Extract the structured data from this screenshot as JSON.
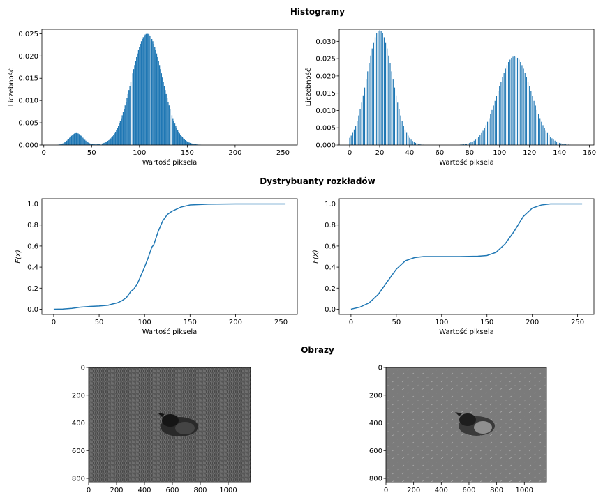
{
  "section_titles": {
    "histograms": "Histogramy",
    "cdfs": "Dystrybuanty rozkładów",
    "images": "Obrazy"
  },
  "colors": {
    "series": "#1f77b4",
    "axes": "#000000"
  },
  "chart_data": [
    {
      "id": "hist-left",
      "type": "bar",
      "xlabel": "Wartość piksela",
      "ylabel": "Liczebność",
      "xlim": [
        -2,
        265
      ],
      "ylim": [
        0,
        0.026
      ],
      "xticks": [
        0,
        50,
        100,
        150,
        200,
        250
      ],
      "yticks": [
        "0.000",
        "0.005",
        "0.010",
        "0.015",
        "0.020",
        "0.025"
      ],
      "ytick_values": [
        0,
        0.005,
        0.01,
        0.015,
        0.02,
        0.025
      ],
      "bins": {
        "start": 13,
        "end": 215,
        "components": [
          {
            "weight": 0.045,
            "mean": 34,
            "sd": 7
          },
          {
            "weight": 0.955,
            "mean": 108,
            "sd": 16
          }
        ],
        "peak": 0.025,
        "gaps": [
          60,
          92,
          112,
          133
        ]
      }
    },
    {
      "id": "hist-right",
      "type": "bar",
      "xlabel": "Wartość piksela",
      "ylabel": "Liczebność",
      "xlim": [
        -7,
        163
      ],
      "ylim": [
        0,
        0.0335
      ],
      "xticks": [
        0,
        20,
        40,
        60,
        80,
        100,
        120,
        140,
        160
      ],
      "yticks": [
        "0.000",
        "0.005",
        "0.010",
        "0.015",
        "0.020",
        "0.025",
        "0.030"
      ],
      "ytick_values": [
        0,
        0.005,
        0.01,
        0.015,
        0.02,
        0.025,
        0.03
      ],
      "bins": {
        "start": 0,
        "end": 150,
        "components": [
          {
            "weight": 0.5,
            "mean": 20,
            "sd": 8.5
          },
          {
            "weight": 0.5,
            "mean": 110,
            "sd": 11
          }
        ],
        "peak": 0.0332,
        "gaps": []
      }
    },
    {
      "id": "cdf-left",
      "type": "line",
      "xlabel": "Wartość piksela",
      "ylabel": "F(x)",
      "xlim": [
        -13,
        268
      ],
      "ylim": [
        -0.05,
        1.05
      ],
      "xticks": [
        0,
        50,
        100,
        150,
        200,
        250
      ],
      "yticks": [
        "0.0",
        "0.2",
        "0.4",
        "0.6",
        "0.8",
        "1.0"
      ],
      "ytick_values": [
        0,
        0.2,
        0.4,
        0.6,
        0.8,
        1.0
      ],
      "points": [
        [
          0,
          0
        ],
        [
          10,
          0.001
        ],
        [
          20,
          0.008
        ],
        [
          30,
          0.02
        ],
        [
          40,
          0.026
        ],
        [
          50,
          0.03
        ],
        [
          60,
          0.038
        ],
        [
          65,
          0.05
        ],
        [
          70,
          0.06
        ],
        [
          75,
          0.08
        ],
        [
          80,
          0.11
        ],
        [
          85,
          0.17
        ],
        [
          88,
          0.19
        ],
        [
          92,
          0.24
        ],
        [
          96,
          0.32
        ],
        [
          100,
          0.4
        ],
        [
          104,
          0.49
        ],
        [
          108,
          0.59
        ],
        [
          110,
          0.61
        ],
        [
          115,
          0.74
        ],
        [
          120,
          0.84
        ],
        [
          125,
          0.9
        ],
        [
          130,
          0.93
        ],
        [
          140,
          0.97
        ],
        [
          150,
          0.99
        ],
        [
          170,
          0.998
        ],
        [
          200,
          1.0
        ],
        [
          255,
          1.0
        ]
      ]
    },
    {
      "id": "cdf-right",
      "type": "line",
      "xlabel": "Wartość piksela",
      "ylabel": "F(x)",
      "xlim": [
        -13,
        268
      ],
      "ylim": [
        -0.05,
        1.05
      ],
      "xticks": [
        0,
        50,
        100,
        150,
        200,
        250
      ],
      "yticks": [
        "0.0",
        "0.2",
        "0.4",
        "0.6",
        "0.8",
        "1.0"
      ],
      "ytick_values": [
        0,
        0.2,
        0.4,
        0.6,
        0.8,
        1.0
      ],
      "points": [
        [
          0,
          0
        ],
        [
          10,
          0.02
        ],
        [
          20,
          0.06
        ],
        [
          30,
          0.14
        ],
        [
          40,
          0.26
        ],
        [
          50,
          0.38
        ],
        [
          60,
          0.46
        ],
        [
          70,
          0.49
        ],
        [
          80,
          0.5
        ],
        [
          100,
          0.5
        ],
        [
          120,
          0.5
        ],
        [
          140,
          0.503
        ],
        [
          150,
          0.51
        ],
        [
          160,
          0.54
        ],
        [
          170,
          0.62
        ],
        [
          180,
          0.74
        ],
        [
          190,
          0.88
        ],
        [
          200,
          0.96
        ],
        [
          210,
          0.99
        ],
        [
          220,
          1.0
        ],
        [
          255,
          1.0
        ]
      ]
    }
  ],
  "images": [
    {
      "id": "img-left",
      "xticks": [
        0,
        200,
        400,
        600,
        800,
        1000
      ],
      "yticks": [
        0,
        200,
        400,
        600,
        800
      ],
      "xlim": [
        0,
        1160
      ],
      "ylim": [
        0,
        830
      ],
      "description_icon": "hare-on-grass-photo",
      "bg": "#6a6a6a"
    },
    {
      "id": "img-right",
      "xticks": [
        0,
        200,
        400,
        600,
        800,
        1000
      ],
      "yticks": [
        0,
        200,
        400,
        600,
        800
      ],
      "xlim": [
        0,
        1160
      ],
      "ylim": [
        0,
        830
      ],
      "description_icon": "hare-on-grass-photo-equalized",
      "bg": "#7a7a7a"
    }
  ]
}
